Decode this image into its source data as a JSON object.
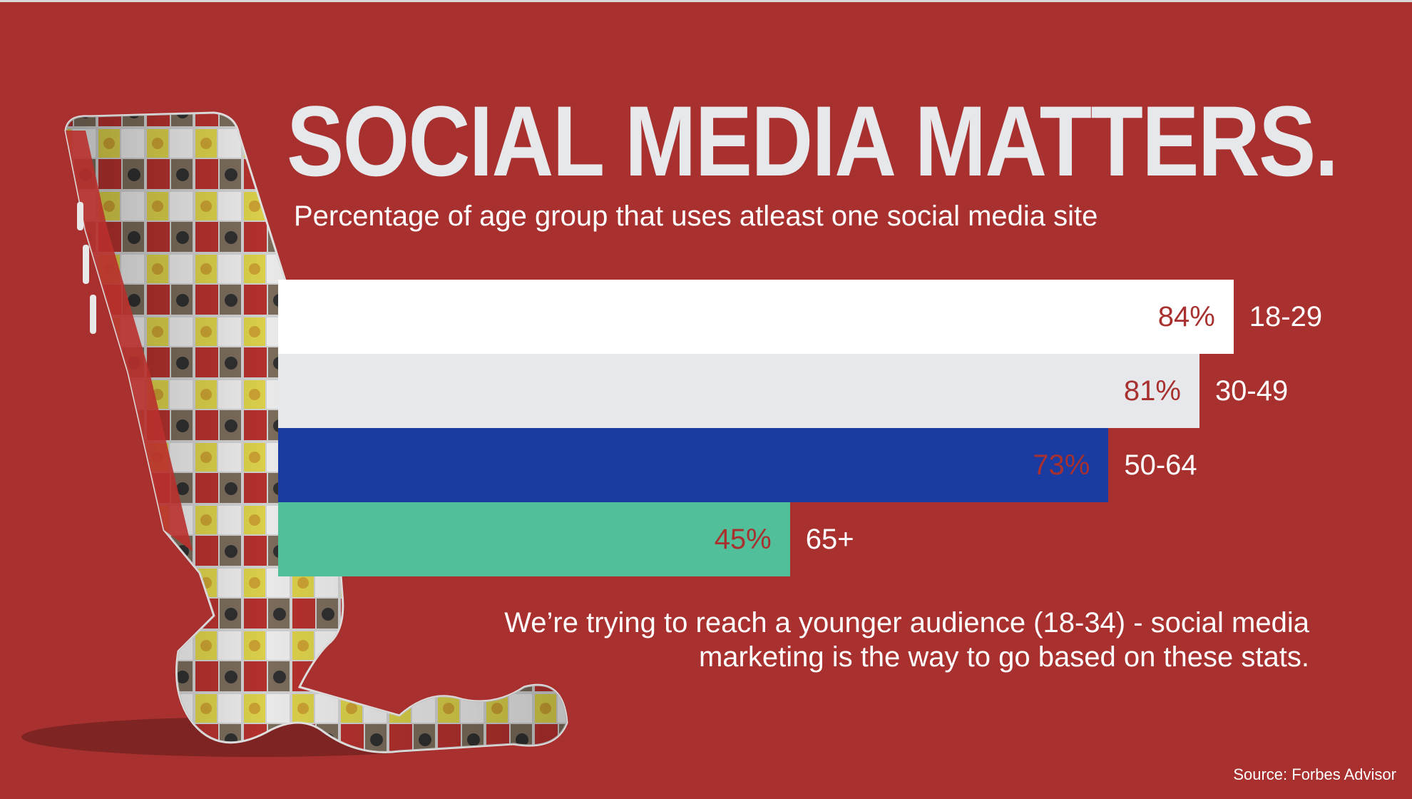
{
  "title": "SOCIAL MEDIA MATTERS.",
  "subtitle": "Percentage of age group that uses atleast one social media site",
  "note": "We’re trying to reach a younger audience (18-34) - social media marketing is the way to go based on these stats.",
  "source": "Source: Forbes Advisor",
  "colors": {
    "background": "#a8302e",
    "title": "#e6e8eb",
    "bar_colors": [
      "#ffffff",
      "#e6e8eb",
      "#1a3ba1",
      "#51bf99"
    ],
    "value_label": "#a8302e"
  },
  "chart_data": {
    "type": "bar",
    "orientation": "horizontal",
    "title": "SOCIAL MEDIA MATTERS.",
    "subtitle": "Percentage of age group that uses atleast one social media site",
    "categories": [
      "18-29",
      "30-49",
      "50-64",
      "65+"
    ],
    "values": [
      84,
      81,
      73,
      45
    ],
    "value_labels": [
      "84%",
      "81%",
      "73%",
      "45%"
    ],
    "grid": false,
    "legend": "none"
  }
}
